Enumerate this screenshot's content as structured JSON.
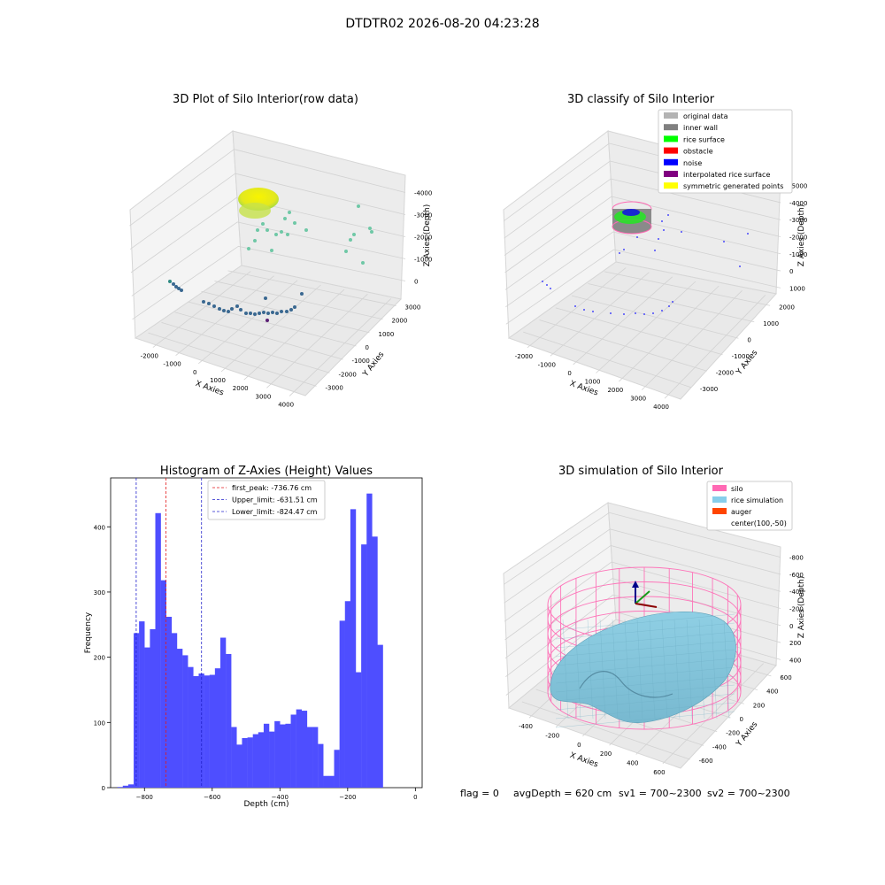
{
  "suptitle": "DTDTR02 2026-08-20 04:23:28",
  "footer": {
    "flag": "flag = 0",
    "avg": "avgDepth = 620 cm",
    "sv1": "sv1 = 700~2300",
    "sv2": "sv2 = 700~2300"
  },
  "colors": {
    "histogram_bar": "#4e4eff",
    "peak_line": "#e41a1c",
    "limit_line": "#2222cc",
    "silo": "#ff69b4",
    "rice": "#87ceeb",
    "auger": "#ff4500",
    "pane": "#f2f2f2",
    "grid": "#d0d0d0"
  },
  "chart_data": [
    {
      "type": "scatter3d",
      "title": "3D Plot of Silo Interior(row data)",
      "xlabel": "X Axies",
      "ylabel": "Y Axies",
      "zlabel": "Z Axies (Depth)",
      "xticks": [
        "-2000",
        "-1000",
        "0",
        "1000",
        "2000",
        "3000",
        "4000"
      ],
      "yticks": [
        "-3000",
        "-2000",
        "-1000",
        "0",
        "1000",
        "2000",
        "3000"
      ],
      "zticks": [
        "0",
        "-1000",
        "-2000",
        "-3000",
        "-4000"
      ],
      "xlim": [
        -2500,
        4000
      ],
      "ylim": [
        -3500,
        3500
      ],
      "zlim": [
        -4500,
        300
      ]
    },
    {
      "type": "scatter3d",
      "title": "3D classify of Silo Interior",
      "xlabel": "X Axies",
      "ylabel": "Y Axies",
      "zlabel": "Z Axies (Depth)",
      "xticks": [
        "-2000",
        "-1000",
        "0",
        "1000",
        "2000",
        "3000",
        "4000"
      ],
      "yticks": [
        "-3000",
        "-2000",
        "-1000",
        "0",
        "1000",
        "2000"
      ],
      "zticks": [
        "1000",
        "0",
        "-1000",
        "-2000",
        "-3000",
        "-4000",
        "-5000"
      ],
      "legend": [
        {
          "label": "original data",
          "color": "#b3b3b3"
        },
        {
          "label": "inner wall",
          "color": "#808080"
        },
        {
          "label": "rice surface",
          "color": "#00ff00"
        },
        {
          "label": "obstacle",
          "color": "#ff0000"
        },
        {
          "label": "noise",
          "color": "#0000ff"
        },
        {
          "label": "interpolated rice surface",
          "color": "#800080"
        },
        {
          "label": "symmetric generated points",
          "color": "#ffff00"
        }
      ],
      "legend_loc": "upper right"
    },
    {
      "type": "bar",
      "title": "Histogram of Z-Axies (Height) Values",
      "xlabel": "Depth (cm)",
      "ylabel": "Frequency",
      "xlim": [
        -900,
        20
      ],
      "ylim": [
        0,
        475
      ],
      "xticks": [
        -800,
        -600,
        -400,
        -200,
        0
      ],
      "yticks": [
        0,
        100,
        200,
        300,
        400
      ],
      "bin_start": -880,
      "bin_width": 16,
      "values": [
        1,
        3,
        5,
        237,
        255,
        215,
        243,
        421,
        318,
        262,
        237,
        213,
        203,
        185,
        171,
        175,
        172,
        173,
        183,
        230,
        205,
        93,
        66,
        76,
        77,
        82,
        85,
        98,
        86,
        102,
        97,
        98,
        112,
        120,
        118,
        93,
        93,
        67,
        18,
        18,
        58,
        256,
        286,
        427,
        177,
        373,
        451,
        385,
        219
      ],
      "lines": [
        {
          "label": "first_peak: -736.76 cm",
          "x": -736.76,
          "color": "#e41a1c"
        },
        {
          "label": "Upper_limit: -631.51 cm",
          "x": -631.51,
          "color": "#2222cc"
        },
        {
          "label": "Lower_limit: -824.47 cm",
          "x": -824.47,
          "color": "#2222cc"
        }
      ],
      "legend_loc": "upper left"
    },
    {
      "type": "surface3d",
      "title": "3D simulation of Silo Interior",
      "xlabel": "X Axies",
      "ylabel": "Y Axies",
      "zlabel": "Z Axies (Depth)",
      "xticks": [
        "-400",
        "-200",
        "0",
        "200",
        "400",
        "600"
      ],
      "yticks": [
        "-600",
        "-400",
        "-200",
        "0",
        "200",
        "400",
        "600"
      ],
      "zticks": [
        "400",
        "200",
        "0",
        "-200",
        "-400",
        "-600",
        "-800"
      ],
      "legend": [
        {
          "label": "silo",
          "color": "#ff69b4"
        },
        {
          "label": "rice simulation",
          "color": "#87ceeb"
        },
        {
          "label": "auger",
          "color": "#ff4500"
        },
        {
          "label": "center(100,-50)",
          "color": ""
        }
      ],
      "legend_loc": "upper right"
    }
  ]
}
